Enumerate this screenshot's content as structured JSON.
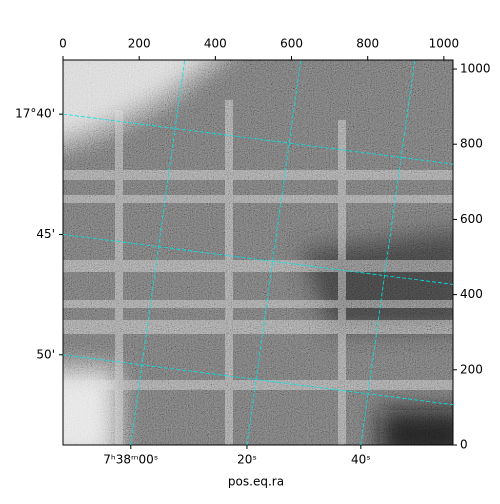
{
  "chart_data": {
    "type": "image",
    "xlabel": "pos.eq.ra",
    "xlim": [
      0,
      1024
    ],
    "ylim": [
      0,
      1024
    ],
    "xticks": [
      0,
      200,
      400,
      600,
      800,
      1000
    ],
    "yticks": [
      0,
      200,
      400,
      600,
      800,
      1000
    ],
    "ra_ticks": [
      {
        "value": 178,
        "label": "7ʰ38ᵐ00ˢ"
      },
      {
        "value": 483,
        "label": "20ˢ"
      },
      {
        "value": 782,
        "label": "40ˢ"
      }
    ],
    "dec_ticks": [
      {
        "value": 880,
        "label": "17°40'"
      },
      {
        "value": 560,
        "label": "45'"
      },
      {
        "value": 240,
        "label": "50'"
      }
    ],
    "grid_color": "#00e5e5"
  }
}
